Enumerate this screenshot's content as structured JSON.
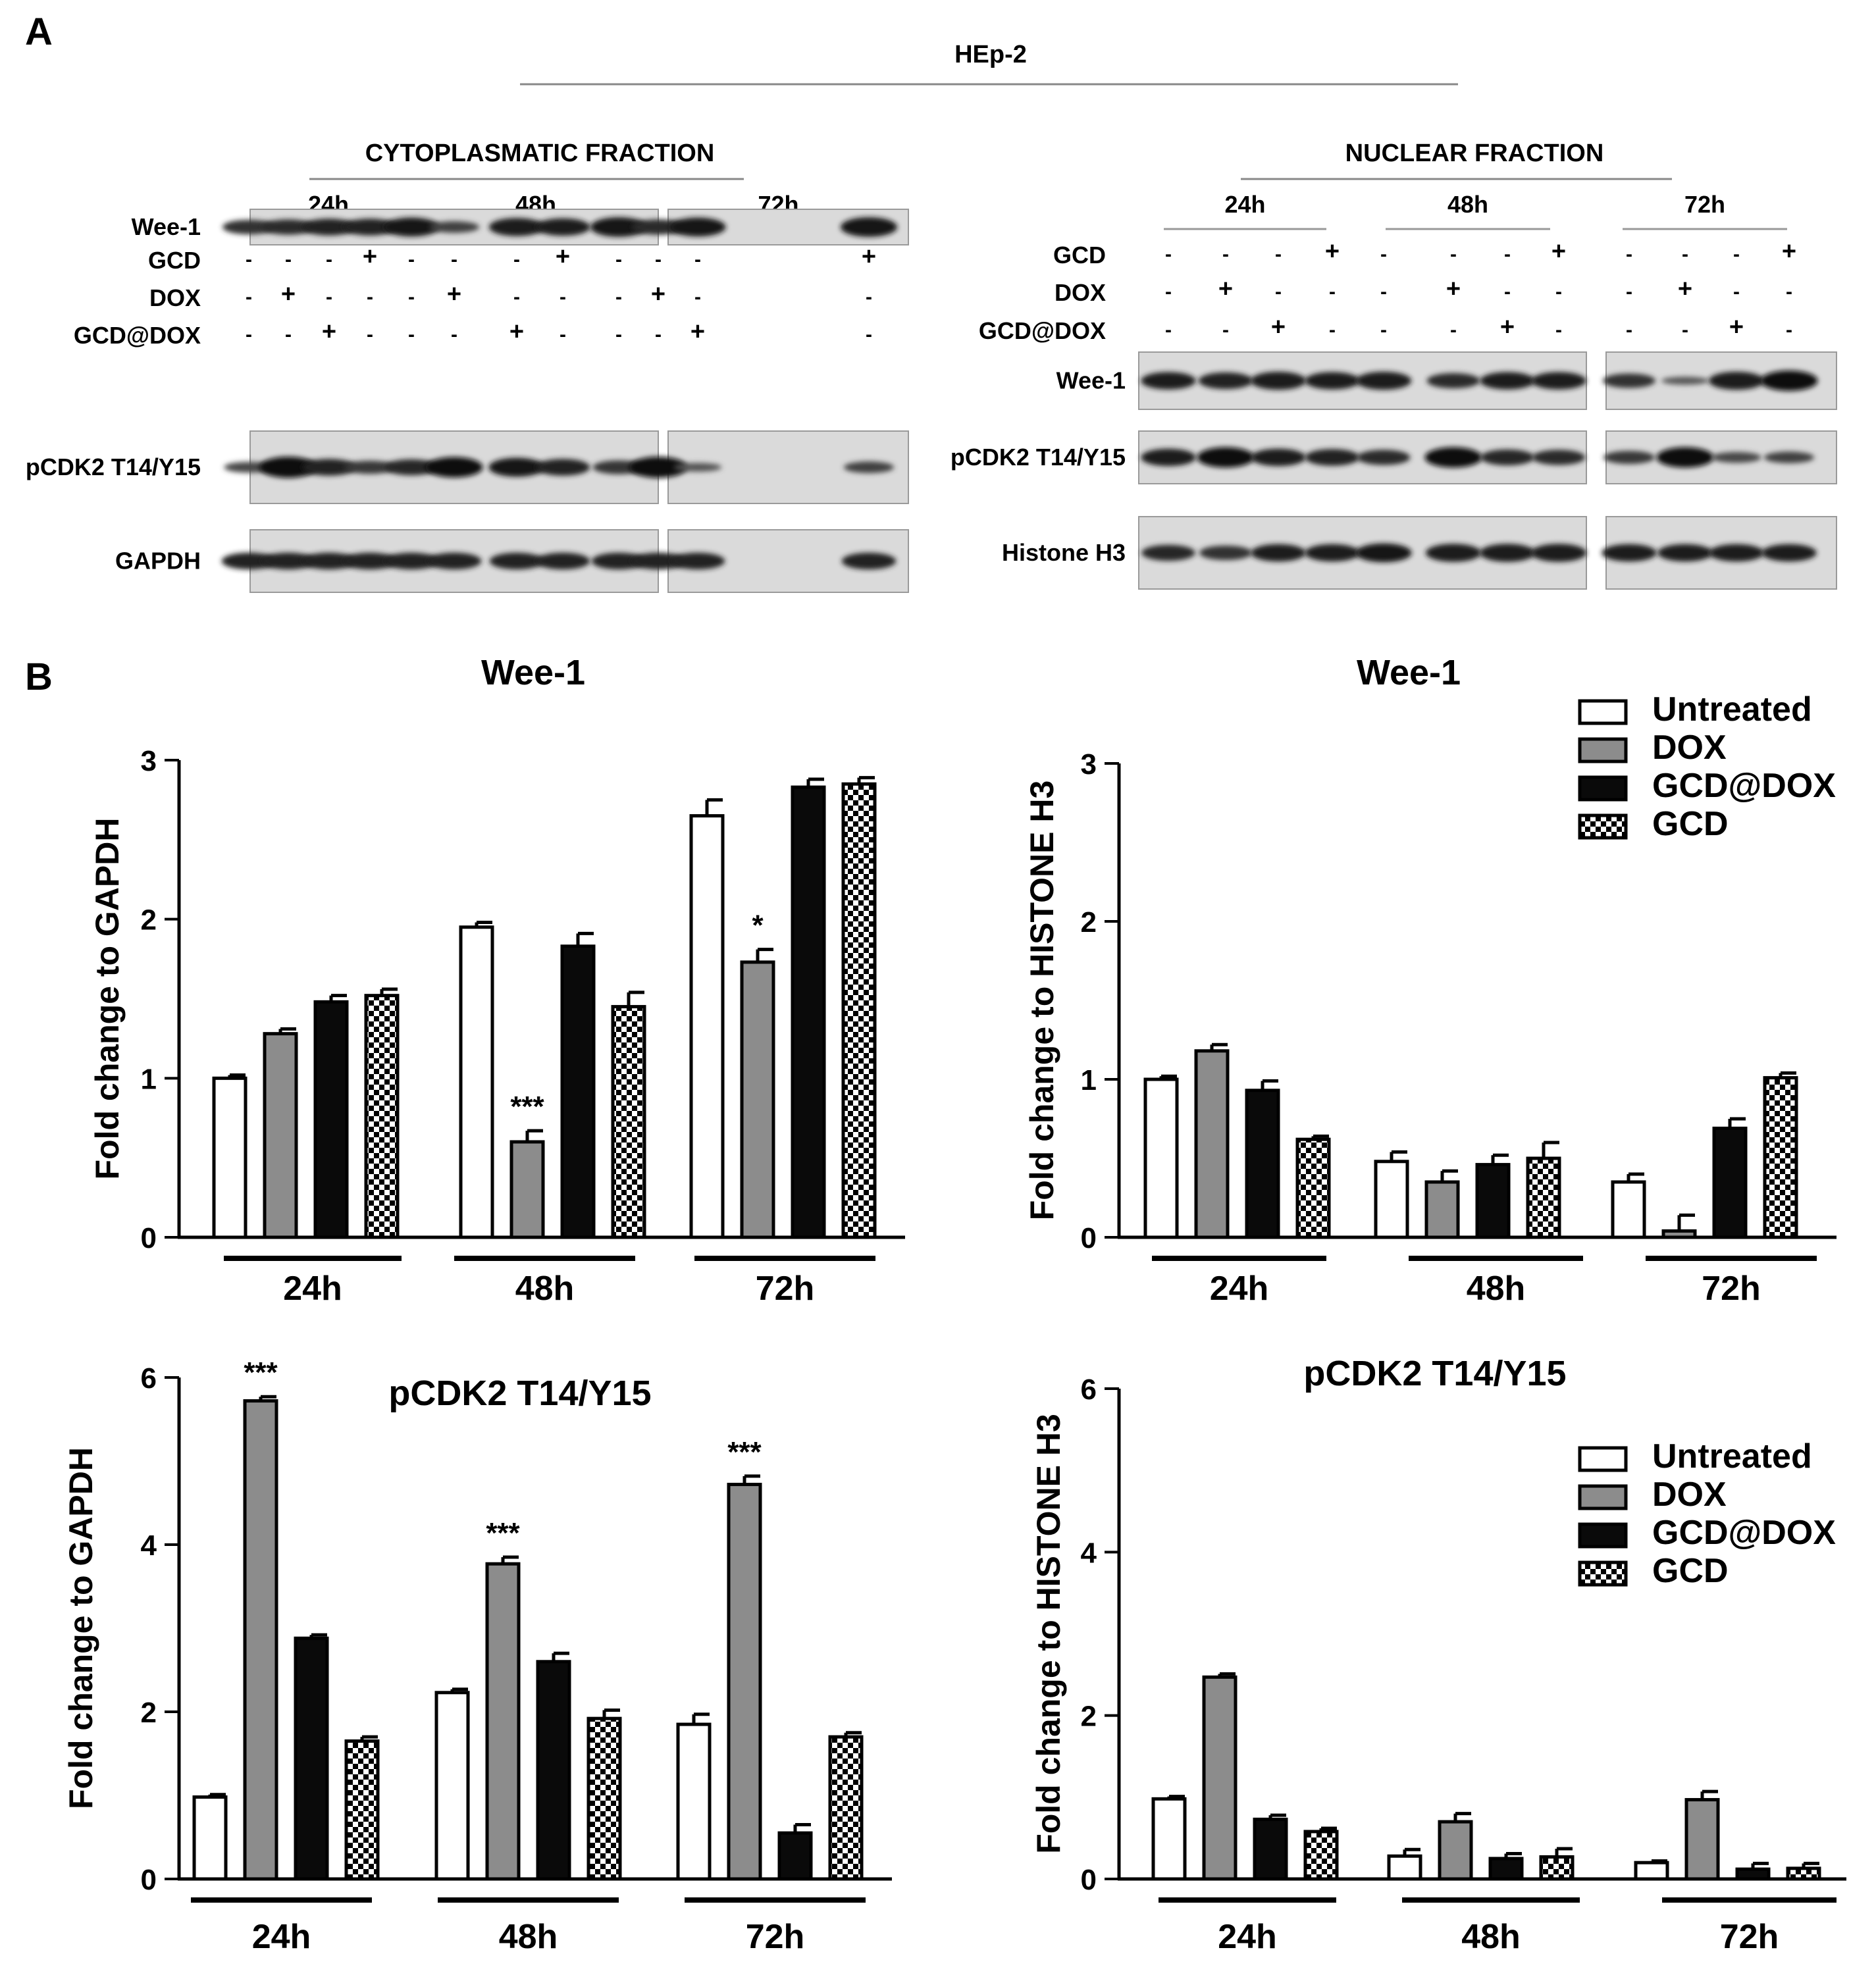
{
  "panel_labels": {
    "a": "A",
    "b": "B"
  },
  "blot_panel": {
    "cell_line": "HEp-2",
    "fractions": [
      {
        "id": "cyto",
        "title": "CYTOPLASMATIC FRACTION",
        "timepoints": [
          "24h",
          "48h",
          "72h"
        ],
        "treatments": [
          {
            "label": "GCD",
            "signs": [
              "-",
              "-",
              "-",
              "+",
              "-",
              "-",
              "-",
              "+",
              "-",
              "-",
              "-",
              "+"
            ]
          },
          {
            "label": "DOX",
            "signs": [
              "-",
              "+",
              "-",
              "-",
              "-",
              "+",
              "-",
              "-",
              "-",
              "+",
              "-",
              "-"
            ]
          },
          {
            "label": "GCD@DOX",
            "signs": [
              "-",
              "-",
              "+",
              "-",
              "-",
              "-",
              "+",
              "-",
              "-",
              "-",
              "+",
              "-"
            ]
          }
        ],
        "rows": [
          {
            "label": "Wee-1",
            "intensity": [
              0.55,
              0.6,
              0.7,
              0.7,
              0.85,
              0.35,
              0.8,
              0.75,
              0.9,
              0.6,
              0.85,
              0.9
            ]
          },
          {
            "label": "pCDK2 T14/Y15",
            "intensity": [
              0.3,
              1.0,
              0.7,
              0.45,
              0.65,
              0.95,
              0.85,
              0.7,
              0.5,
              1.0,
              0.15,
              0.35
            ]
          },
          {
            "label": "GAPDH",
            "intensity": [
              0.7,
              0.7,
              0.7,
              0.7,
              0.7,
              0.7,
              0.7,
              0.7,
              0.7,
              0.7,
              0.7,
              0.7
            ]
          }
        ]
      },
      {
        "id": "nuc",
        "title": "NUCLEAR FRACTION",
        "timepoints": [
          "24h",
          "48h",
          "72h"
        ],
        "treatments": [
          {
            "label": "GCD",
            "signs": [
              "-",
              "-",
              "-",
              "+",
              "-",
              "-",
              "-",
              "+",
              "-",
              "-",
              "-",
              "+"
            ]
          },
          {
            "label": "DOX",
            "signs": [
              "-",
              "+",
              "-",
              "-",
              "-",
              "+",
              "-",
              "-",
              "-",
              "+",
              "-",
              "-"
            ]
          },
          {
            "label": "GCD@DOX",
            "signs": [
              "-",
              "-",
              "+",
              "-",
              "-",
              "-",
              "+",
              "-",
              "-",
              "-",
              "+",
              "-"
            ]
          }
        ],
        "rows": [
          {
            "label": "Wee-1",
            "intensity": [
              0.75,
              0.7,
              0.8,
              0.75,
              0.8,
              0.6,
              0.75,
              0.75,
              0.55,
              0.1,
              0.8,
              0.95
            ]
          },
          {
            "label": "pCDK2 T14/Y15",
            "intensity": [
              0.75,
              0.95,
              0.75,
              0.7,
              0.6,
              0.95,
              0.65,
              0.6,
              0.45,
              0.95,
              0.3,
              0.35
            ]
          },
          {
            "label": "Histone H3",
            "intensity": [
              0.65,
              0.55,
              0.75,
              0.75,
              0.85,
              0.8,
              0.8,
              0.8,
              0.75,
              0.75,
              0.75,
              0.75
            ]
          }
        ]
      }
    ]
  },
  "legend": {
    "entries": [
      {
        "label": "Untreated",
        "pattern": "white"
      },
      {
        "label": "DOX",
        "pattern": "gray"
      },
      {
        "label": "GCD@DOX",
        "pattern": "black"
      },
      {
        "label": "GCD",
        "pattern": "checker"
      }
    ]
  },
  "colors": {
    "gray_fill": "#8c8c8c",
    "black_fill": "#0a0a0a",
    "white_fill": "#ffffff",
    "blot_bg": "#dadada"
  },
  "chart_data": [
    {
      "id": "cyto-wee1",
      "type": "bar",
      "title": "Wee-1",
      "ylabel": "Fold change to GAPDH",
      "xlabel": "",
      "categories": [
        "24h",
        "48h",
        "72h"
      ],
      "ylim": [
        0,
        3
      ],
      "yticks": [
        0,
        1,
        2,
        3
      ],
      "series": [
        {
          "name": "Untreated",
          "values": [
            1.0,
            1.95,
            2.65
          ],
          "errors": [
            0.02,
            0.03,
            0.1
          ]
        },
        {
          "name": "DOX",
          "values": [
            1.28,
            0.6,
            1.73
          ],
          "errors": [
            0.03,
            0.07,
            0.08
          ]
        },
        {
          "name": "GCD@DOX",
          "values": [
            1.48,
            1.83,
            2.83
          ],
          "errors": [
            0.04,
            0.08,
            0.05
          ]
        },
        {
          "name": "GCD",
          "values": [
            1.52,
            1.45,
            2.85
          ],
          "errors": [
            0.04,
            0.09,
            0.04
          ]
        }
      ],
      "annotations": [
        {
          "category": 1,
          "series": 1,
          "text": "***"
        },
        {
          "category": 2,
          "series": 1,
          "text": "*"
        }
      ]
    },
    {
      "id": "nuc-wee1",
      "type": "bar",
      "title": "Wee-1",
      "ylabel": "Fold change to HISTONE H3",
      "xlabel": "",
      "categories": [
        "24h",
        "48h",
        "72h"
      ],
      "ylim": [
        0,
        3
      ],
      "yticks": [
        0,
        1,
        2,
        3
      ],
      "series": [
        {
          "name": "Untreated",
          "values": [
            1.0,
            0.48,
            0.35
          ],
          "errors": [
            0.02,
            0.06,
            0.05
          ]
        },
        {
          "name": "DOX",
          "values": [
            1.18,
            0.35,
            0.04
          ],
          "errors": [
            0.04,
            0.07,
            0.1
          ]
        },
        {
          "name": "GCD@DOX",
          "values": [
            0.93,
            0.46,
            0.69
          ],
          "errors": [
            0.06,
            0.06,
            0.06
          ]
        },
        {
          "name": "GCD",
          "values": [
            0.62,
            0.5,
            1.01
          ],
          "errors": [
            0.02,
            0.1,
            0.03
          ]
        }
      ],
      "annotations": []
    },
    {
      "id": "cyto-pcdk2",
      "type": "bar",
      "title": "pCDK2 T14/Y15",
      "ylabel": "Fold change to GAPDH",
      "xlabel": "",
      "categories": [
        "24h",
        "48h",
        "72h"
      ],
      "ylim": [
        0,
        6
      ],
      "yticks": [
        0,
        2,
        4,
        6
      ],
      "series": [
        {
          "name": "Untreated",
          "values": [
            0.98,
            2.23,
            1.85
          ],
          "errors": [
            0.03,
            0.04,
            0.12
          ]
        },
        {
          "name": "DOX",
          "values": [
            5.72,
            3.77,
            4.72
          ],
          "errors": [
            0.05,
            0.08,
            0.1
          ]
        },
        {
          "name": "GCD@DOX",
          "values": [
            2.88,
            2.6,
            0.55
          ],
          "errors": [
            0.04,
            0.1,
            0.1
          ]
        },
        {
          "name": "GCD",
          "values": [
            1.65,
            1.92,
            1.7
          ],
          "errors": [
            0.05,
            0.1,
            0.05
          ]
        }
      ],
      "annotations": [
        {
          "category": 0,
          "series": 1,
          "text": "***"
        },
        {
          "category": 1,
          "series": 1,
          "text": "***"
        },
        {
          "category": 2,
          "series": 1,
          "text": "***"
        }
      ]
    },
    {
      "id": "nuc-pcdk2",
      "type": "bar",
      "title": "pCDK2 T14/Y15",
      "ylabel": "Fold change to HISTONE H3",
      "xlabel": "",
      "categories": [
        "24h",
        "48h",
        "72h"
      ],
      "ylim": [
        0,
        6
      ],
      "yticks": [
        0,
        2,
        4,
        6
      ],
      "series": [
        {
          "name": "Untreated",
          "values": [
            0.98,
            0.28,
            0.2
          ],
          "errors": [
            0.03,
            0.08,
            0.02
          ]
        },
        {
          "name": "DOX",
          "values": [
            2.47,
            0.7,
            0.97
          ],
          "errors": [
            0.04,
            0.1,
            0.1
          ]
        },
        {
          "name": "GCD@DOX",
          "values": [
            0.73,
            0.25,
            0.12
          ],
          "errors": [
            0.05,
            0.06,
            0.07
          ]
        },
        {
          "name": "GCD",
          "values": [
            0.58,
            0.27,
            0.13
          ],
          "errors": [
            0.04,
            0.1,
            0.06
          ]
        }
      ],
      "annotations": []
    }
  ]
}
